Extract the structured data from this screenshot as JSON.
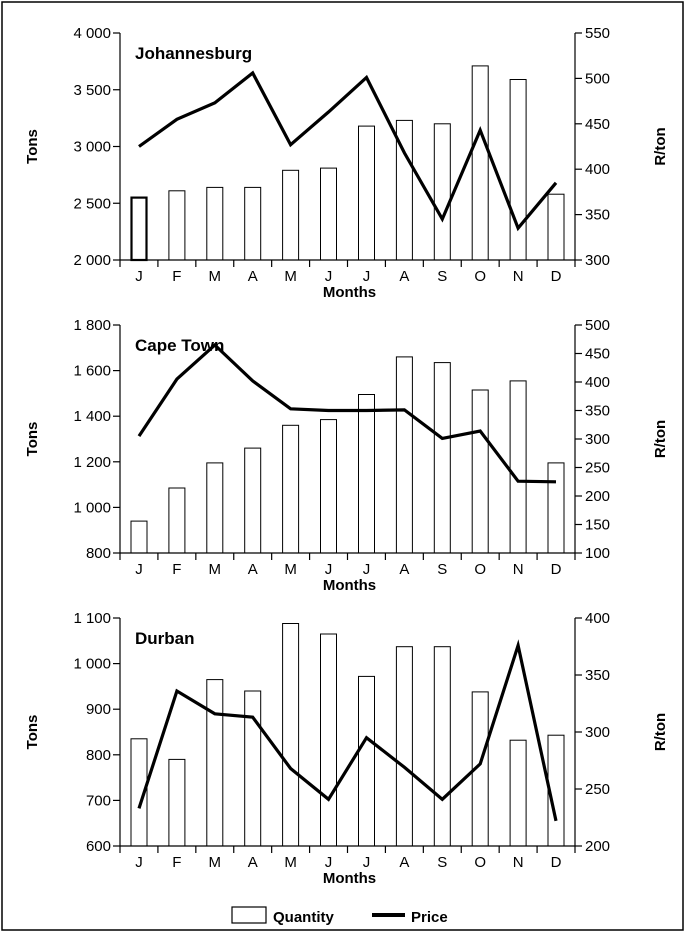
{
  "chart_data": [
    {
      "type": "bar",
      "title": "Johannesburg",
      "categories": [
        "J",
        "F",
        "M",
        "A",
        "M",
        "J",
        "J",
        "A",
        "S",
        "O",
        "N",
        "D"
      ],
      "xlabel": "Months",
      "ylabel": "Tons",
      "y2label": "R/ton",
      "ylim": [
        2000,
        4000
      ],
      "yticks": [
        2000,
        2500,
        3000,
        3500,
        4000
      ],
      "yticklabels": [
        "2 000",
        "2 500",
        "3 000",
        "3 500",
        "4 000"
      ],
      "y2lim": [
        300,
        550
      ],
      "y2ticks": [
        300,
        350,
        400,
        450,
        500,
        550
      ],
      "y2ticklabels": [
        "300",
        "350",
        "400",
        "450",
        "500",
        "550"
      ],
      "series": [
        {
          "name": "Quantity",
          "type": "bar",
          "axis": "left",
          "values": [
            2550,
            2610,
            2640,
            2640,
            2790,
            2810,
            3180,
            3230,
            3200,
            3710,
            3590,
            2580
          ]
        },
        {
          "name": "Price",
          "type": "line",
          "axis": "right",
          "values": [
            425,
            455,
            473,
            506,
            427,
            463,
            501,
            418,
            345,
            443,
            335,
            385
          ]
        }
      ],
      "grid": false
    },
    {
      "type": "bar",
      "title": "Cape Town",
      "categories": [
        "J",
        "F",
        "M",
        "A",
        "M",
        "J",
        "J",
        "A",
        "S",
        "O",
        "N",
        "D"
      ],
      "xlabel": "Months",
      "ylabel": "Tons",
      "y2label": "R/ton",
      "ylim": [
        800,
        1800
      ],
      "yticks": [
        800,
        1000,
        1200,
        1400,
        1600,
        1800
      ],
      "yticklabels": [
        "800",
        "1 000",
        "1 200",
        "1 400",
        "1 600",
        "1 800"
      ],
      "y2lim": [
        100,
        500
      ],
      "y2ticks": [
        100,
        150,
        200,
        250,
        300,
        350,
        400,
        450,
        500
      ],
      "y2ticklabels": [
        "100",
        "150",
        "200",
        "250",
        "300",
        "350",
        "400",
        "450",
        "500"
      ],
      "series": [
        {
          "name": "Quantity",
          "type": "bar",
          "axis": "left",
          "values": [
            940,
            1085,
            1195,
            1260,
            1360,
            1385,
            1495,
            1660,
            1635,
            1515,
            1555,
            1195
          ]
        },
        {
          "name": "Price",
          "type": "line",
          "axis": "right",
          "values": [
            305,
            405,
            465,
            402,
            353,
            350,
            350,
            351,
            301,
            314,
            226,
            225
          ]
        }
      ],
      "grid": false
    },
    {
      "type": "bar",
      "title": "Durban",
      "categories": [
        "J",
        "F",
        "M",
        "A",
        "M",
        "J",
        "J",
        "A",
        "S",
        "O",
        "N",
        "D"
      ],
      "xlabel": "Months",
      "ylabel": "Tons",
      "y2label": "R/ton",
      "ylim": [
        600,
        1100
      ],
      "yticks": [
        600,
        700,
        800,
        900,
        1000,
        1100
      ],
      "yticklabels": [
        "600",
        "700",
        "800",
        "900",
        "1 000",
        "1 100"
      ],
      "y2lim": [
        200,
        400
      ],
      "y2ticks": [
        200,
        250,
        300,
        350,
        400
      ],
      "y2ticklabels": [
        "200",
        "250",
        "300",
        "350",
        "400"
      ],
      "series": [
        {
          "name": "Quantity",
          "type": "bar",
          "axis": "left",
          "values": [
            835,
            790,
            965,
            940,
            1088,
            1065,
            972,
            1037,
            1037,
            938,
            832,
            843
          ]
        },
        {
          "name": "Price",
          "type": "line",
          "axis": "right",
          "values": [
            233,
            336,
            316,
            313,
            268,
            241,
            295,
            269,
            241,
            272,
            376,
            222
          ]
        }
      ],
      "grid": false
    }
  ],
  "legend": {
    "position": "bottom-center",
    "items": [
      {
        "label": "Quantity",
        "symbol": "open-bar"
      },
      {
        "label": "Price",
        "symbol": "thick-line"
      }
    ]
  },
  "colors": {
    "bar_fill": "#ffffff",
    "bar_stroke": "#000000",
    "line": "#000000",
    "frame": "#000000"
  }
}
